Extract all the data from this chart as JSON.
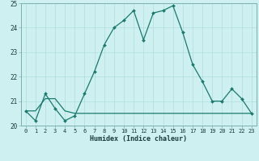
{
  "xlabel": "Humidex (Indice chaleur)",
  "line1_x": [
    0,
    1,
    2,
    3,
    4,
    5,
    6,
    7,
    8,
    9,
    10,
    11,
    12,
    13,
    14,
    15,
    16,
    17,
    18,
    19,
    20,
    21,
    22,
    23
  ],
  "line1_y": [
    20.6,
    20.2,
    21.3,
    20.7,
    20.2,
    20.4,
    21.3,
    22.2,
    23.3,
    24.0,
    24.3,
    24.7,
    23.5,
    24.6,
    24.7,
    24.9,
    23.8,
    22.5,
    21.8,
    21.0,
    21.0,
    21.5,
    21.1,
    20.5
  ],
  "line2_x": [
    0,
    1,
    2,
    3,
    4,
    5,
    6,
    7,
    8,
    9,
    10,
    11,
    12,
    13,
    14,
    15,
    16,
    17,
    18,
    19,
    20,
    21,
    22,
    23
  ],
  "line2_y": [
    20.6,
    20.6,
    21.1,
    21.1,
    20.6,
    20.5,
    20.5,
    20.5,
    20.5,
    20.5,
    20.5,
    20.5,
    20.5,
    20.5,
    20.5,
    20.5,
    20.5,
    20.5,
    20.5,
    20.5,
    20.5,
    20.5,
    20.5,
    20.5
  ],
  "line_color": "#1a7a6e",
  "bg_color": "#cef0f0",
  "grid_major_color": "#b0dcdc",
  "grid_minor_color": "#c8ecec",
  "ylim": [
    20.0,
    25.0
  ],
  "xlim_min": -0.5,
  "xlim_max": 23.5,
  "yticks": [
    20,
    21,
    22,
    23,
    24,
    25
  ],
  "xticks": [
    0,
    1,
    2,
    3,
    4,
    5,
    6,
    7,
    8,
    9,
    10,
    11,
    12,
    13,
    14,
    15,
    16,
    17,
    18,
    19,
    20,
    21,
    22,
    23
  ]
}
